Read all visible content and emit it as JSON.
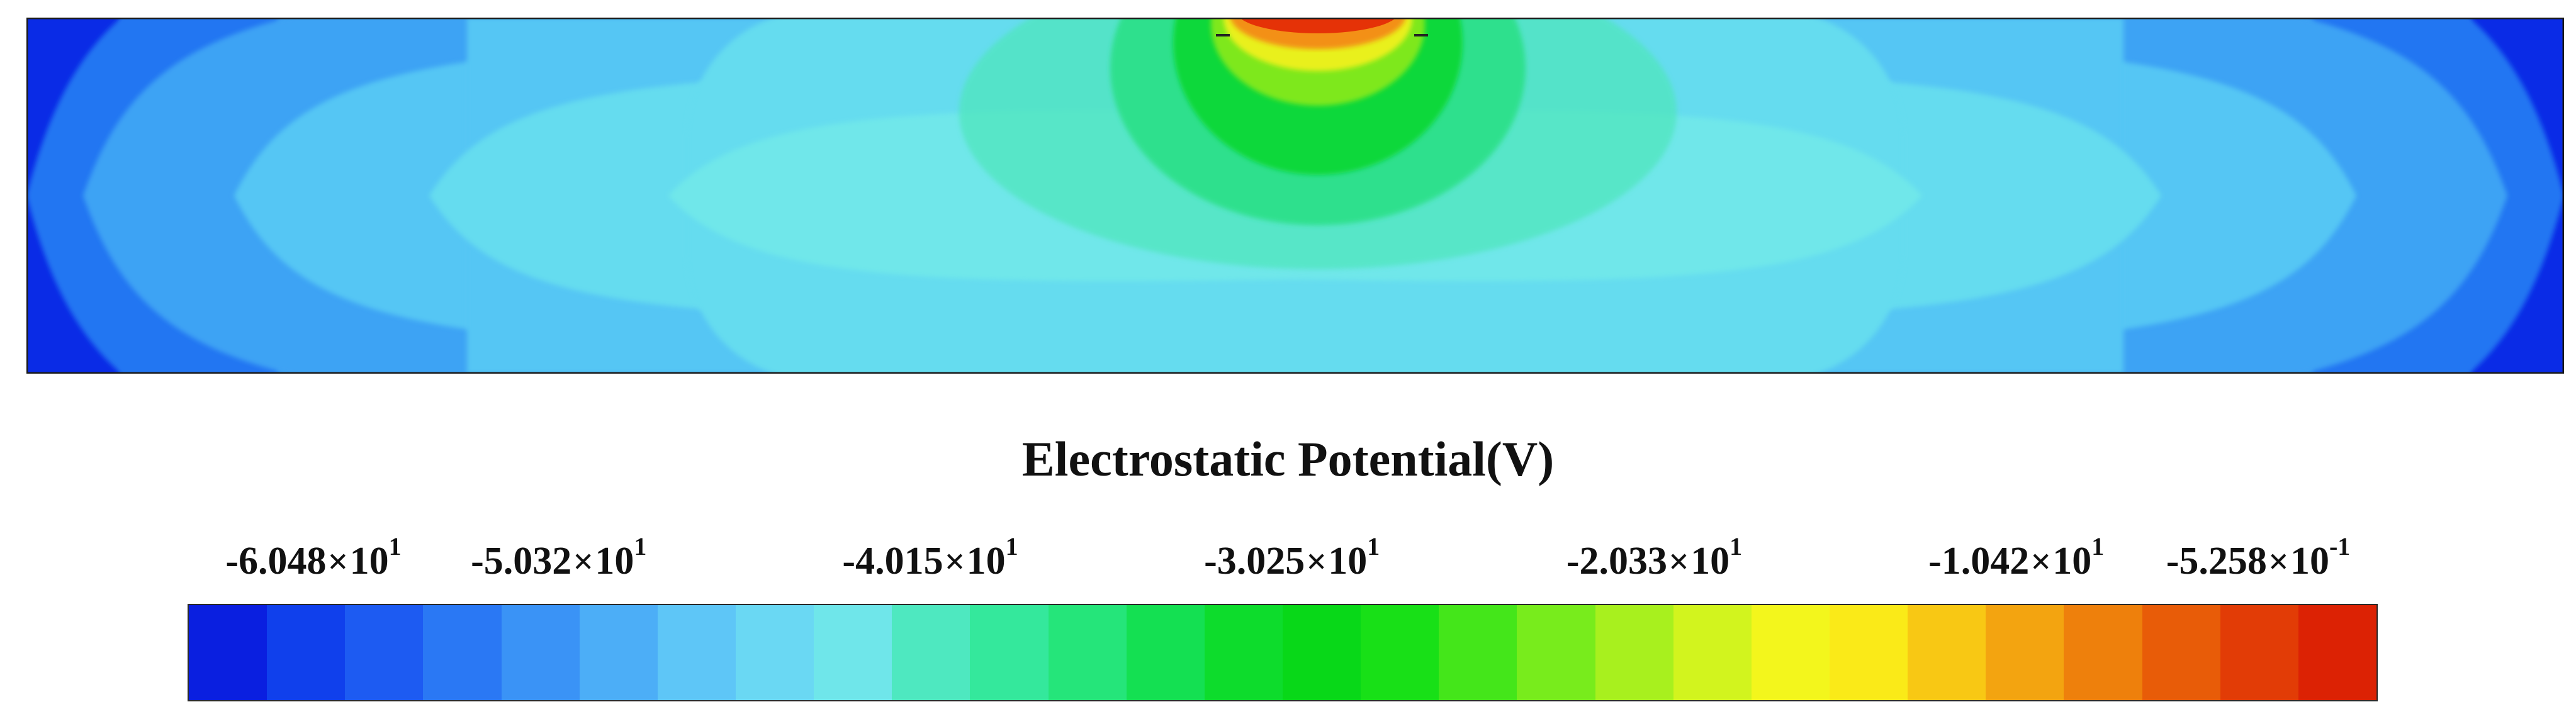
{
  "chart_data": {
    "type": "heatmap",
    "title": "Electrostatic Potential(V)",
    "colorbar": {
      "tick_labels": [
        {
          "mantissa": "-6.048",
          "base": "10",
          "exponent": "1"
        },
        {
          "mantissa": "-5.032",
          "base": "10",
          "exponent": "1"
        },
        {
          "mantissa": "-4.015",
          "base": "10",
          "exponent": "1"
        },
        {
          "mantissa": "-3.025",
          "base": "10",
          "exponent": "1"
        },
        {
          "mantissa": "-2.033",
          "base": "10",
          "exponent": "1"
        },
        {
          "mantissa": "-1.042",
          "base": "10",
          "exponent": "1"
        },
        {
          "mantissa": "-5.258",
          "base": "10",
          "exponent": "-1"
        }
      ],
      "tick_values": [
        -60.48,
        -50.32,
        -40.15,
        -30.25,
        -20.33,
        -10.42,
        -0.5258
      ],
      "range": [
        -60.48,
        -0.5258
      ],
      "colors": [
        "#0a1fe0",
        "#1040ec",
        "#1d5bf2",
        "#2a78f4",
        "#3a93f6",
        "#4caef7",
        "#5ec6f7",
        "#6ad8f3",
        "#6fe6ea",
        "#4ee8c0",
        "#34e89c",
        "#25e57a",
        "#14e052",
        "#0ddc2c",
        "#08d818",
        "#18e017",
        "#44e61a",
        "#78ec1c",
        "#a8f01e",
        "#d2f41e",
        "#f3f61c",
        "#faea18",
        "#f8c814",
        "#f3a410",
        "#ee800c",
        "#e85c08",
        "#e23c06",
        "#dc2204"
      ]
    },
    "field": {
      "description_colors": {
        "background": "#65dcef",
        "edge_dark": "#0a2be6",
        "edge_mid": "#2176f2",
        "edge_light": "#3ea3f4",
        "inner_lobe": "#55c6f4",
        "center_pale": "#6fe7ea",
        "plume_outer": "#4fe6bd",
        "plume_mid": "#2ce087",
        "plume_inner": "#10d83a",
        "plume_core": "#7ee81c",
        "hot_yellow": "#e9f01a",
        "hot_orange": "#f39012",
        "hot_red": "#e53207"
      }
    }
  }
}
